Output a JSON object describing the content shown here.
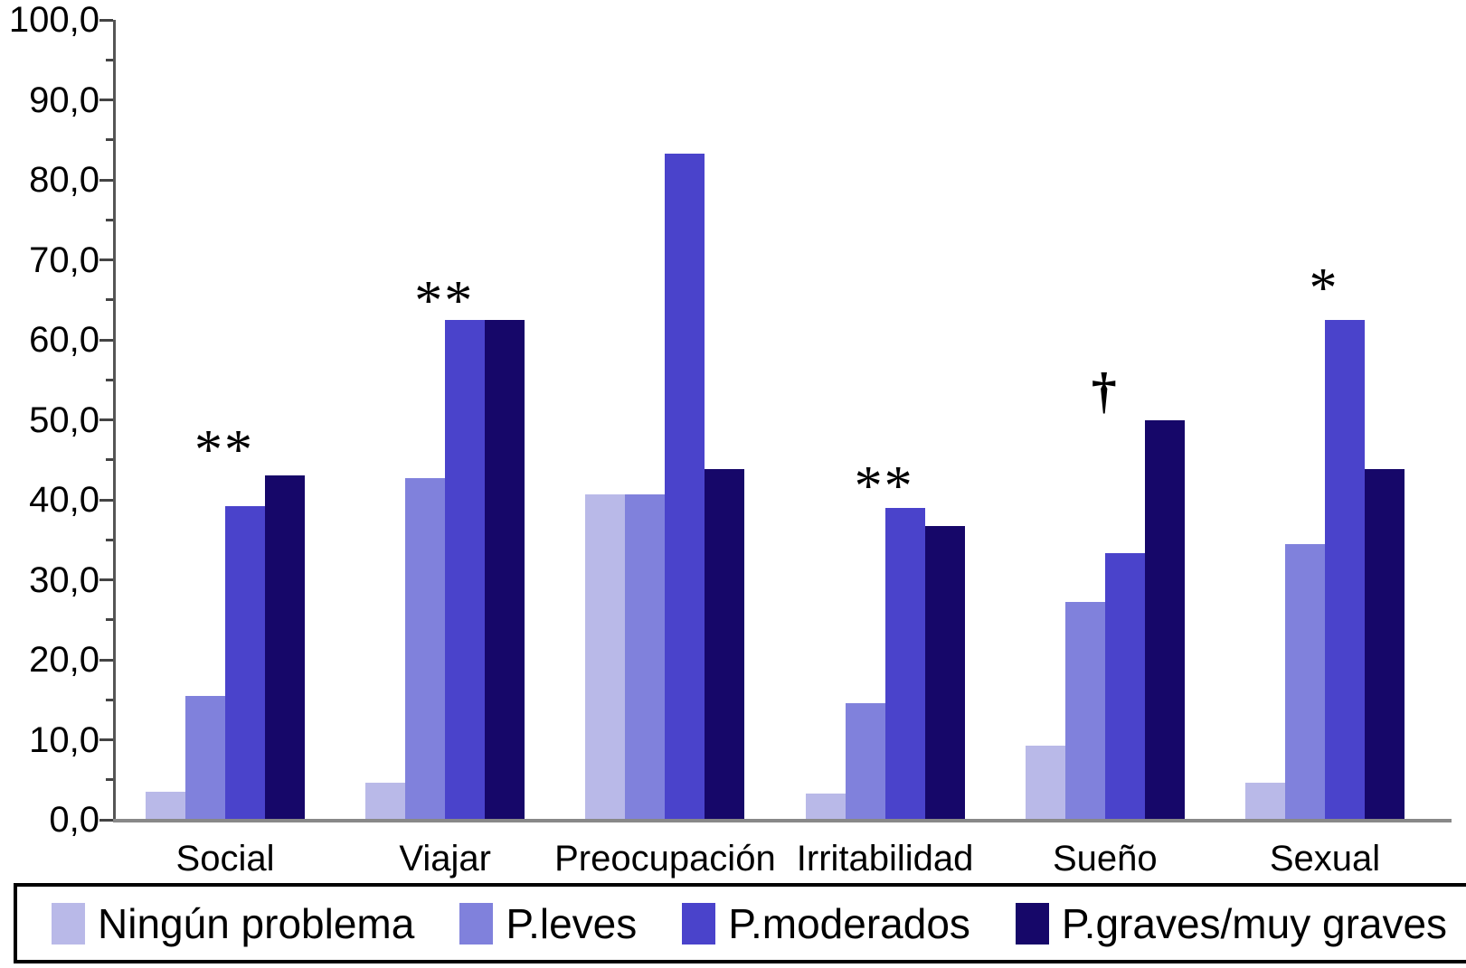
{
  "chart_data": {
    "type": "bar",
    "title": "",
    "xlabel": "",
    "ylabel": "",
    "categories": [
      "Social",
      "Viajar",
      "Preocupación",
      "Irritabilidad",
      "Sueño",
      "Sexual"
    ],
    "series": [
      {
        "name": "Ningún problema",
        "color": "#B9B9E8",
        "values": [
          3.5,
          4.6,
          40.7,
          3.3,
          9.3,
          4.6
        ]
      },
      {
        "name": "P.leves",
        "color": "#8081DC",
        "values": [
          15.5,
          42.7,
          40.7,
          14.6,
          27.2,
          34.5
        ]
      },
      {
        "name": "P.moderados",
        "color": "#4A43CB",
        "values": [
          39.2,
          62.5,
          83.3,
          39.0,
          33.3,
          62.5
        ]
      },
      {
        "name": "P.graves/muy graves",
        "color": "#160769",
        "values": [
          43.0,
          62.5,
          43.8,
          36.7,
          50.0,
          43.8
        ]
      }
    ],
    "annotations": [
      {
        "category": "Social",
        "symbol": "**",
        "level": 47.7
      },
      {
        "category": "Viajar",
        "symbol": "**",
        "level": 66.3
      },
      {
        "category": "Irritabilidad",
        "symbol": "**",
        "level": 43.2
      },
      {
        "category": "Sueño",
        "symbol": "†",
        "level": 53.6
      },
      {
        "category": "Sexual",
        "symbol": "*",
        "level": 67.9
      }
    ],
    "y_axis": {
      "min": 0,
      "max": 100,
      "major_step": 10,
      "minor_step": 5,
      "tick_labels": [
        "0,0",
        "10,0",
        "20,0",
        "30,0",
        "40,0",
        "50,0",
        "60,0",
        "70,0",
        "80,0",
        "90,0",
        "100,0"
      ]
    },
    "legend_position": "bottom",
    "grid": false,
    "axis_color": "#555555",
    "baseline_color": "#888888"
  }
}
